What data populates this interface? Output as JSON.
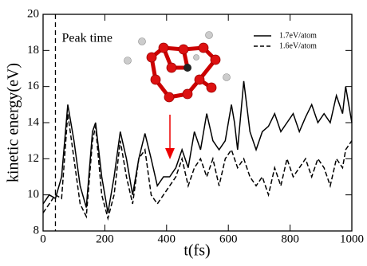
{
  "chart_data": {
    "type": "line",
    "xlabel": "t(fs)",
    "ylabel": "kinetic energy(eV)",
    "x": [
      0,
      20,
      40,
      60,
      80,
      100,
      120,
      140,
      160,
      170,
      190,
      210,
      230,
      250,
      270,
      290,
      310,
      330,
      350,
      370,
      390,
      410,
      430,
      450,
      470,
      490,
      510,
      530,
      550,
      570,
      590,
      610,
      620,
      630,
      650,
      670,
      690,
      710,
      730,
      750,
      770,
      790,
      810,
      830,
      850,
      870,
      890,
      910,
      930,
      950,
      970,
      980,
      1000
    ],
    "series": [
      {
        "name": "1.7eV/atom",
        "color": "#000000",
        "style": "solid",
        "values": [
          9.5,
          10,
          9.8,
          11,
          15,
          13,
          10.5,
          9.3,
          13.5,
          14,
          11,
          9,
          11,
          13.5,
          12,
          10,
          12,
          13.4,
          12,
          10.5,
          11,
          11,
          11.5,
          12.5,
          11.5,
          13.5,
          12.5,
          14.5,
          13,
          12.5,
          13,
          15,
          14,
          12.5,
          16.3,
          13.5,
          12.5,
          13.5,
          13.8,
          14.5,
          13.5,
          14,
          14.5,
          13.5,
          14.3,
          15,
          14,
          14.5,
          14,
          15.5,
          14.5,
          16,
          14
        ]
      },
      {
        "name": "1.6eV/atom",
        "color": "#000000",
        "style": "dashed",
        "values": [
          9,
          9.5,
          10,
          9.8,
          14.5,
          12,
          9.5,
          8.8,
          13,
          13.8,
          10,
          8.7,
          10,
          13,
          11,
          9.5,
          12,
          12.5,
          10,
          9.5,
          10,
          10.5,
          11,
          12,
          10.5,
          11.5,
          12,
          11,
          12,
          10.5,
          12,
          12.5,
          12,
          11.5,
          12,
          11,
          10.5,
          11,
          10,
          11.5,
          10.5,
          12,
          11,
          11.5,
          12,
          11,
          12,
          11.5,
          10.5,
          12,
          11.5,
          12.5,
          13
        ]
      }
    ],
    "annotations": [
      {
        "text": "Peak time",
        "x": 40
      }
    ],
    "xlim": [
      0,
      1000
    ],
    "xticks": [
      0,
      200,
      400,
      600,
      800,
      1000
    ],
    "ylim": [
      8,
      20
    ],
    "yticks": [
      8,
      10,
      12,
      14,
      16,
      18,
      20
    ],
    "legend": "upper right"
  }
}
